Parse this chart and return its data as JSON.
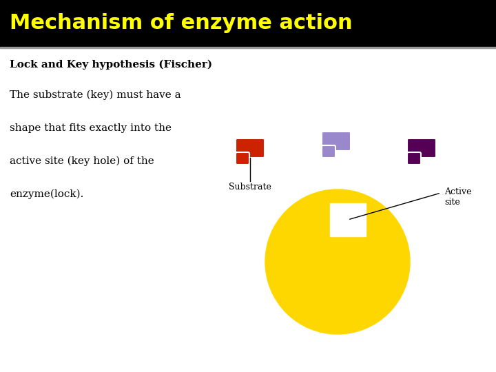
{
  "title": "Mechanism of enzyme action",
  "title_color": "#FFFF00",
  "title_bg": "#000000",
  "subtitle": "Lock and Key hypothesis (Fischer)",
  "body_lines": [
    "The substrate (key) must have a",
    "shape that fits exactly into the",
    "active site (key hole) of the",
    "enzyme(lock)."
  ],
  "text_color": "#000000",
  "bg_color": "#ffffff",
  "substrate_label": "Substrate",
  "active_site_label": "Active\nsite",
  "enzyme_color": "#FFD700",
  "substrate1_color": "#CC2200",
  "substrate2_color": "#9988CC",
  "substrate3_color": "#550055",
  "title_fontsize": 22,
  "subtitle_fontsize": 11,
  "body_fontsize": 11,
  "fig_w": 7.2,
  "fig_h": 5.4,
  "dpi": 100
}
